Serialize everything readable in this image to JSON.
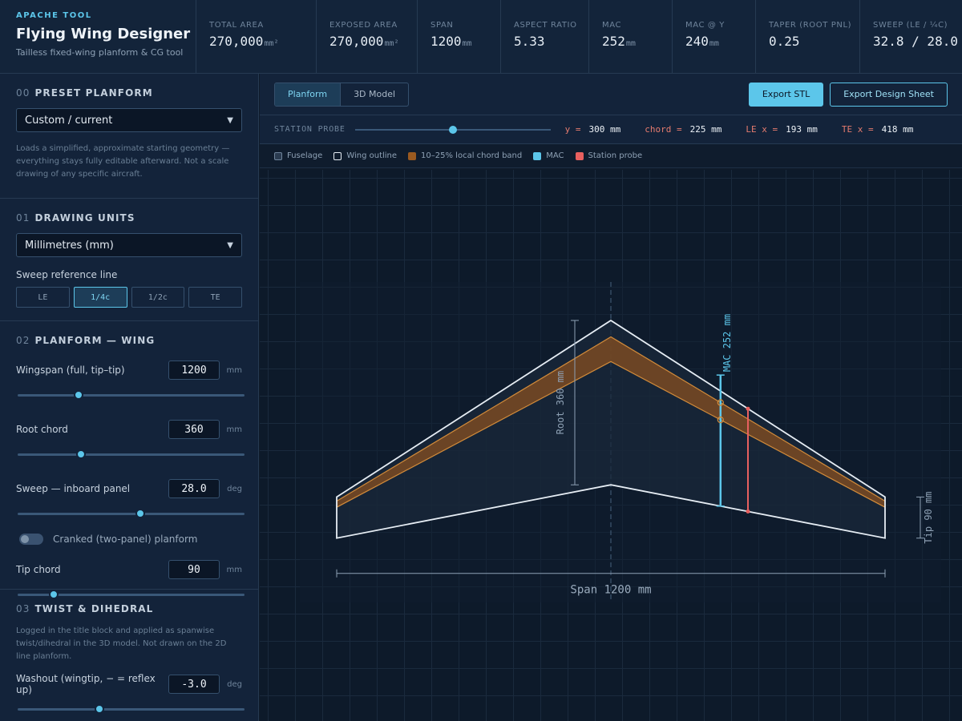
{
  "app": {
    "tag": "APACHE TOOL",
    "title": "Flying Wing Designer",
    "subtitle": "Tailless fixed-wing planform & CG tool"
  },
  "stats": [
    {
      "label": "TOTAL AREA",
      "value": "270,000",
      "unit": "mm²"
    },
    {
      "label": "EXPOSED AREA",
      "value": "270,000",
      "unit": "mm²"
    },
    {
      "label": "SPAN",
      "value": "1200",
      "unit": "mm"
    },
    {
      "label": "ASPECT RATIO",
      "value": "5.33",
      "unit": ""
    },
    {
      "label": "MAC",
      "value": "252",
      "unit": "mm"
    },
    {
      "label": "MAC @ Y",
      "value": "240",
      "unit": "mm"
    },
    {
      "label": "TAPER (ROOT PNL)",
      "value": "0.25",
      "unit": ""
    },
    {
      "label": "SWEEP (LE / ¼C)",
      "value": "32.8 / 28.0",
      "unit": ""
    }
  ],
  "sidebar": {
    "preset": {
      "num": "00",
      "title": "PRESET PLANFORM",
      "select_value": "Custom / current",
      "note": "Loads a simplified, approximate starting geometry — everything stays fully editable afterward. Not a scale drawing of any specific aircraft."
    },
    "units": {
      "num": "01",
      "title": "DRAWING UNITS",
      "select_value": "Millimetres (mm)",
      "sweep_ref_label": "Sweep reference line",
      "sweep_ref_options": [
        "LE",
        "1/4c",
        "1/2c",
        "TE"
      ],
      "sweep_ref_selected": "1/4c"
    },
    "wing": {
      "num": "02",
      "title": "PLANFORM — WING",
      "wingspan": {
        "label": "Wingspan (full, tip–tip)",
        "value": "1200",
        "unit": "mm",
        "slider": 0.27
      },
      "root_chord": {
        "label": "Root chord",
        "value": "360",
        "unit": "mm",
        "slider": 0.28
      },
      "sweep": {
        "label": "Sweep — inboard panel",
        "value": "28.0",
        "unit": "deg",
        "slider": 0.54
      },
      "cranked": {
        "label": "Cranked (two-panel) planform",
        "on": false
      },
      "tip_chord": {
        "label": "Tip chord",
        "value": "90",
        "unit": "mm",
        "slider": 0.16
      }
    },
    "twist": {
      "num": "03",
      "title": "TWIST & DIHEDRAL",
      "note": "Logged in the title block and applied as spanwise twist/dihedral in the 3D model. Not drawn on the 2D line planform.",
      "washout": {
        "label": "Washout (wingtip, − = reflex up)",
        "value": "-3.0",
        "unit": "deg",
        "slider": 0.36
      }
    }
  },
  "toolbar": {
    "tabs": [
      "Planform",
      "3D Model"
    ],
    "active_tab": "Planform",
    "export_stl": "Export STL",
    "export_sheet": "Export Design Sheet"
  },
  "probe": {
    "label": "STATION PROBE",
    "slider": 0.5,
    "readouts": [
      {
        "key": "y =",
        "value": "300 mm"
      },
      {
        "key": "chord =",
        "value": "225 mm"
      },
      {
        "key": "LE x =",
        "value": "193 mm"
      },
      {
        "key": "TE x =",
        "value": "418 mm"
      }
    ]
  },
  "legend": [
    {
      "label": "Fuselage",
      "color": "#2a3b50",
      "border": "#6f849b"
    },
    {
      "label": "Wing outline",
      "color": "transparent",
      "border": "#e6edf4"
    },
    {
      "label": "10–25% local chord band",
      "color": "#9a5a20",
      "border": "#9a5a20"
    },
    {
      "label": "MAC",
      "color": "#5cc6ea",
      "border": "#5cc6ea"
    },
    {
      "label": "Station probe",
      "color": "#e8605f",
      "border": "#e8605f"
    }
  ],
  "drawing": {
    "root_label": "Root 360 mm",
    "mac_label": "MAC 252 mm",
    "tip_label": "Tip 90 mm",
    "span_label": "Span 1200 mm",
    "geometry": {
      "span": 1200,
      "root_chord": 360,
      "tip_chord": 90,
      "le_sweep_deg": 32.8,
      "mac": 252,
      "mac_y": 240,
      "probe_y": 300
    }
  },
  "colors": {
    "accent": "#5cc6ea",
    "probe": "#e8605f",
    "band": "#c8863a",
    "outline": "#e6edf4"
  }
}
